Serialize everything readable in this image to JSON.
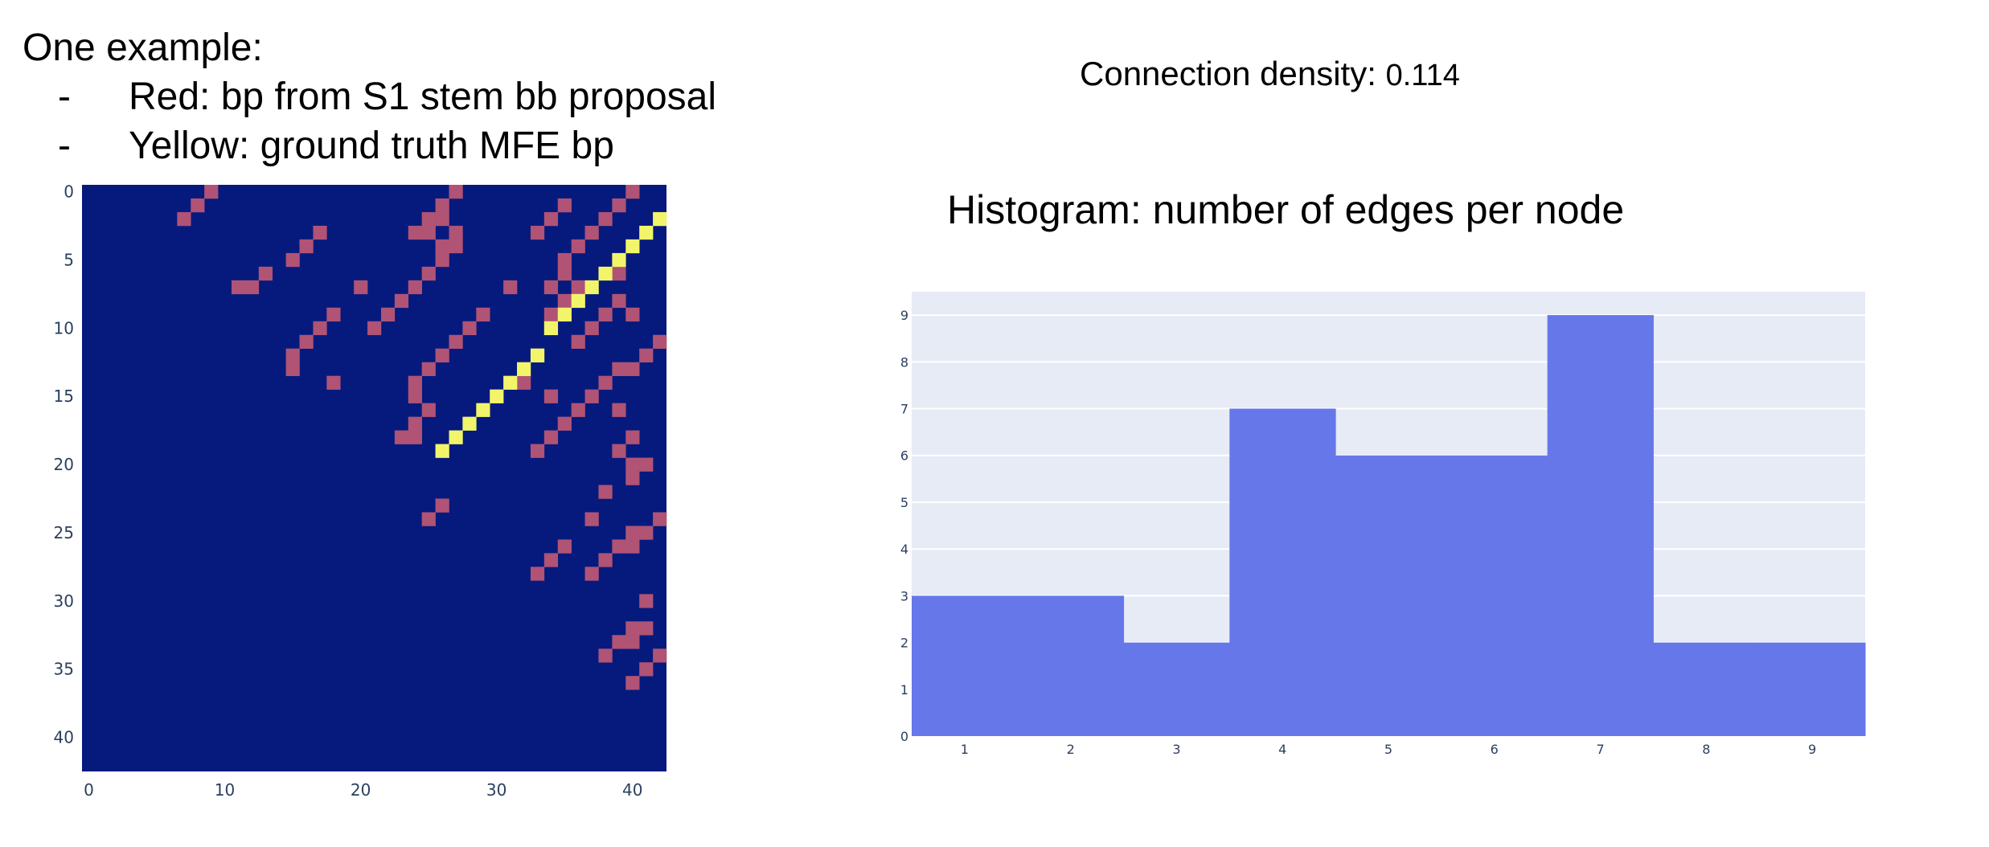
{
  "slide": {
    "title": "One example:",
    "bullets": [
      {
        "dash": "-",
        "text": "Red: bp from S1 stem bb proposal"
      },
      {
        "dash": "-",
        "text": "Yellow: ground truth MFE bp"
      }
    ],
    "density_label": "Connection density:",
    "density_value": "0.114",
    "histogram_title": "Histogram: number of edges per node"
  },
  "colors": {
    "heatmap_bg": "#061a7d",
    "red_bp": "#b05375",
    "yellow_bp": "#f2f56a",
    "hist_bar": "#6677ea",
    "hist_bg": "#e6ebf5"
  },
  "chart_data": [
    {
      "type": "heatmap",
      "x_ticks": [
        0,
        10,
        20,
        30,
        40
      ],
      "y_ticks": [
        0,
        5,
        10,
        15,
        20,
        25,
        30,
        35,
        40
      ],
      "xlim": [
        -0.5,
        42.5
      ],
      "ylim": [
        -0.5,
        42.5
      ],
      "red_cells": [
        [
          0,
          9
        ],
        [
          0,
          27
        ],
        [
          0,
          40
        ],
        [
          1,
          8
        ],
        [
          1,
          26
        ],
        [
          1,
          35
        ],
        [
          1,
          39
        ],
        [
          2,
          7
        ],
        [
          2,
          25
        ],
        [
          2,
          26
        ],
        [
          2,
          34
        ],
        [
          2,
          38
        ],
        [
          3,
          17
        ],
        [
          3,
          24
        ],
        [
          3,
          25
        ],
        [
          3,
          27
        ],
        [
          3,
          33
        ],
        [
          3,
          37
        ],
        [
          4,
          16
        ],
        [
          4,
          26
        ],
        [
          4,
          27
        ],
        [
          4,
          36
        ],
        [
          5,
          15
        ],
        [
          5,
          26
        ],
        [
          5,
          35
        ],
        [
          6,
          13
        ],
        [
          6,
          25
        ],
        [
          6,
          35
        ],
        [
          6,
          39
        ],
        [
          7,
          11
        ],
        [
          7,
          12
        ],
        [
          7,
          20
        ],
        [
          7,
          24
        ],
        [
          7,
          31
        ],
        [
          7,
          34
        ],
        [
          7,
          36
        ],
        [
          8,
          23
        ],
        [
          8,
          35
        ],
        [
          8,
          39
        ],
        [
          9,
          18
        ],
        [
          9,
          22
        ],
        [
          9,
          29
        ],
        [
          9,
          34
        ],
        [
          9,
          38
        ],
        [
          9,
          40
        ],
        [
          10,
          17
        ],
        [
          10,
          21
        ],
        [
          10,
          28
        ],
        [
          10,
          34
        ],
        [
          10,
          37
        ],
        [
          11,
          16
        ],
        [
          11,
          27
        ],
        [
          11,
          36
        ],
        [
          11,
          42
        ],
        [
          12,
          15
        ],
        [
          12,
          26
        ],
        [
          12,
          33
        ],
        [
          12,
          41
        ],
        [
          13,
          15
        ],
        [
          13,
          25
        ],
        [
          13,
          39
        ],
        [
          13,
          40
        ],
        [
          14,
          18
        ],
        [
          14,
          24
        ],
        [
          14,
          32
        ],
        [
          14,
          38
        ],
        [
          15,
          24
        ],
        [
          15,
          34
        ],
        [
          15,
          37
        ],
        [
          16,
          25
        ],
        [
          16,
          36
        ],
        [
          16,
          39
        ],
        [
          17,
          24
        ],
        [
          17,
          35
        ],
        [
          18,
          24
        ],
        [
          18,
          23
        ],
        [
          18,
          34
        ],
        [
          18,
          40
        ],
        [
          19,
          33
        ],
        [
          19,
          39
        ],
        [
          20,
          40
        ],
        [
          20,
          41
        ],
        [
          21,
          40
        ],
        [
          22,
          38
        ],
        [
          23,
          26
        ],
        [
          24,
          25
        ],
        [
          24,
          37
        ],
        [
          24,
          42
        ],
        [
          25,
          40
        ],
        [
          25,
          41
        ],
        [
          26,
          35
        ],
        [
          26,
          39
        ],
        [
          26,
          40
        ],
        [
          27,
          34
        ],
        [
          27,
          38
        ],
        [
          28,
          33
        ],
        [
          28,
          37
        ],
        [
          30,
          41
        ],
        [
          32,
          40
        ],
        [
          32,
          41
        ],
        [
          33,
          39
        ],
        [
          33,
          40
        ],
        [
          34,
          38
        ],
        [
          34,
          42
        ],
        [
          35,
          41
        ],
        [
          36,
          40
        ]
      ],
      "yellow_cells": [
        [
          2,
          42
        ],
        [
          3,
          41
        ],
        [
          4,
          40
        ],
        [
          5,
          39
        ],
        [
          6,
          38
        ],
        [
          7,
          37
        ],
        [
          8,
          36
        ],
        [
          9,
          35
        ],
        [
          10,
          34
        ],
        [
          12,
          33
        ],
        [
          13,
          32
        ],
        [
          14,
          31
        ],
        [
          15,
          30
        ],
        [
          16,
          29
        ],
        [
          17,
          28
        ],
        [
          18,
          27
        ],
        [
          19,
          26
        ]
      ]
    },
    {
      "type": "bar",
      "title": "Histogram: number of edges per node",
      "categories": [
        "1",
        "2",
        "3",
        "4",
        "5",
        "6",
        "7",
        "8",
        "9"
      ],
      "values": [
        3,
        3,
        2,
        7,
        6,
        6,
        9,
        2,
        2
      ],
      "y_ticks": [
        0,
        1,
        2,
        3,
        4,
        5,
        6,
        7,
        8,
        9
      ],
      "ylim": [
        0,
        9.5
      ],
      "xlim": [
        0.5,
        9.5
      ],
      "grid": true
    }
  ]
}
